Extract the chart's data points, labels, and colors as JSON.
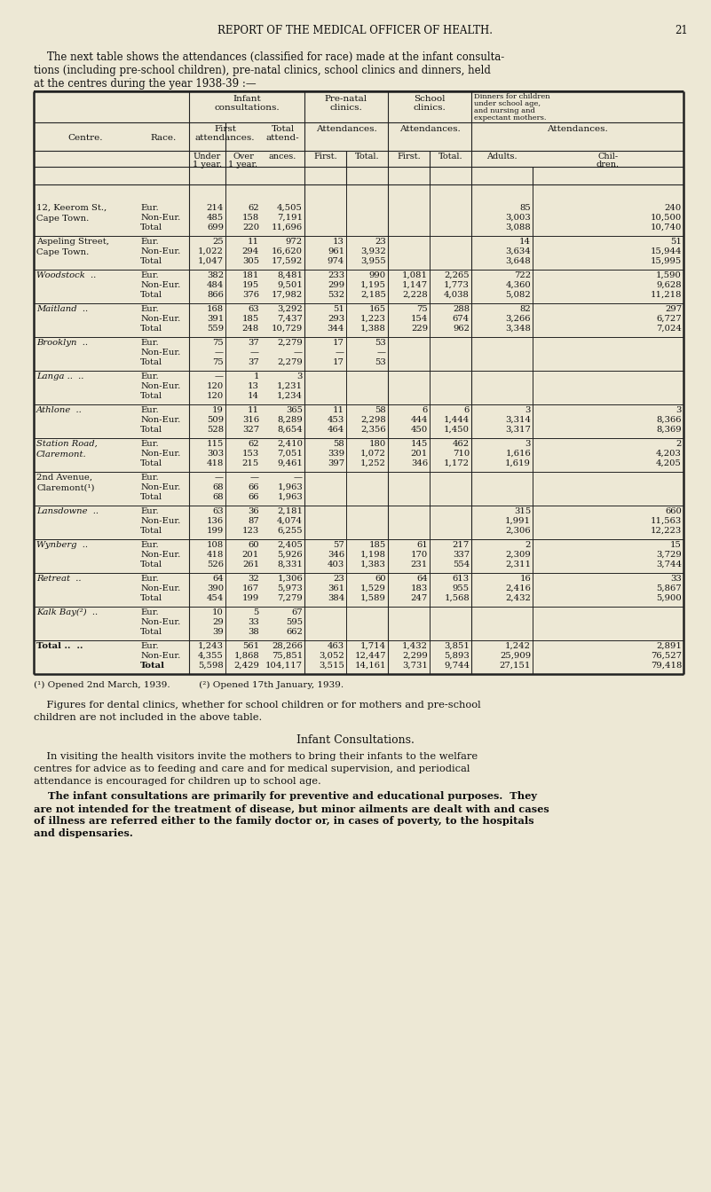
{
  "page_header": "REPORT OF THE MEDICAL OFFICER OF HEALTH.",
  "page_number": "21",
  "intro_lines": [
    "    The next table shows the attendances (classified for race) made at the infant consulta-",
    "tions (including pre-school children), pre-natal clinics, school clinics and dinners, held",
    "at the centres during the year 1938-39 :—"
  ],
  "bg_color": "#EDE8D5",
  "table_rows": [
    {
      "centre": "12, Keerom St.,",
      "centre2": "Cape Town.",
      "italic": false,
      "race": [
        "Eur.",
        "Non-Eur.",
        "Total"
      ],
      "u1": [
        "214",
        "485",
        "699"
      ],
      "o1": [
        "62",
        "158",
        "220"
      ],
      "ta": [
        "4,505",
        "7,191",
        "11,696"
      ],
      "pnf": [
        "",
        "",
        ""
      ],
      "pnt": [
        "",
        "",
        ""
      ],
      "scf": [
        "",
        "",
        ""
      ],
      "sct": [
        "",
        "",
        ""
      ],
      "da": [
        "85",
        "3,003",
        "3,088"
      ],
      "dc": [
        "240",
        "10,500",
        "10,740"
      ]
    },
    {
      "centre": "Aspeling Street,",
      "centre2": "Cape Town.",
      "italic": false,
      "race": [
        "Eur.",
        "Non-Eur.",
        "Total"
      ],
      "u1": [
        "25",
        "1,022",
        "1,047"
      ],
      "o1": [
        "11",
        "294",
        "305"
      ],
      "ta": [
        "972",
        "16,620",
        "17,592"
      ],
      "pnf": [
        "13",
        "961",
        "974"
      ],
      "pnt": [
        "23",
        "3,932",
        "3,955"
      ],
      "scf": [
        "",
        "",
        ""
      ],
      "sct": [
        "",
        "",
        ""
      ],
      "da": [
        "14",
        "3,634",
        "3,648"
      ],
      "dc": [
        "51",
        "15,944",
        "15,995"
      ]
    },
    {
      "centre": "Woodstock",
      "centre2": "..",
      "italic": true,
      "race": [
        "Eur.",
        "Non-Eur.",
        "Total"
      ],
      "u1": [
        "382",
        "484",
        "866"
      ],
      "o1": [
        "181",
        "195",
        "376"
      ],
      "ta": [
        "8,481",
        "9,501",
        "17,982"
      ],
      "pnf": [
        "233",
        "299",
        "532"
      ],
      "pnt": [
        "990",
        "1,195",
        "2,185"
      ],
      "scf": [
        "1,081",
        "1,147",
        "2,228"
      ],
      "sct": [
        "2,265",
        "1,773",
        "4,038"
      ],
      "da": [
        "722",
        "4,360",
        "5,082"
      ],
      "dc": [
        "1,590",
        "9,628",
        "11,218"
      ]
    },
    {
      "centre": "Maitland",
      "centre2": "..",
      "italic": true,
      "race": [
        "Eur.",
        "Non-Eur.",
        "Total"
      ],
      "u1": [
        "168",
        "391",
        "559"
      ],
      "o1": [
        "63",
        "185",
        "248"
      ],
      "ta": [
        "3,292",
        "7,437",
        "10,729"
      ],
      "pnf": [
        "51",
        "293",
        "344"
      ],
      "pnt": [
        "165",
        "1,223",
        "1,388"
      ],
      "scf": [
        "75",
        "154",
        "229"
      ],
      "sct": [
        "288",
        "674",
        "962"
      ],
      "da": [
        "82",
        "3,266",
        "3,348"
      ],
      "dc": [
        "297",
        "6,727",
        "7,024"
      ]
    },
    {
      "centre": "Brooklyn",
      "centre2": "..",
      "italic": true,
      "race": [
        "Eur.",
        "Non-Eur.",
        "Total"
      ],
      "u1": [
        "75",
        "—",
        "75"
      ],
      "o1": [
        "37",
        "—",
        "37"
      ],
      "ta": [
        "2,279",
        "—",
        "2,279"
      ],
      "pnf": [
        "17",
        "—",
        "17"
      ],
      "pnt": [
        "53",
        "—",
        "53"
      ],
      "scf": [
        "",
        "",
        ""
      ],
      "sct": [
        "",
        "",
        ""
      ],
      "da": [
        "",
        "",
        ""
      ],
      "dc": [
        "",
        "",
        ""
      ]
    },
    {
      "centre": "Langa ..",
      "centre2": "..",
      "italic": true,
      "race": [
        "Eur.",
        "Non-Eur.",
        "Total"
      ],
      "u1": [
        "—",
        "120",
        "120"
      ],
      "o1": [
        "1",
        "13",
        "14"
      ],
      "ta": [
        "3",
        "1,231",
        "1,234"
      ],
      "pnf": [
        "",
        "",
        ""
      ],
      "pnt": [
        "",
        "",
        ""
      ],
      "scf": [
        "",
        "",
        ""
      ],
      "sct": [
        "",
        "",
        ""
      ],
      "da": [
        "",
        "",
        ""
      ],
      "dc": [
        "",
        "",
        ""
      ]
    },
    {
      "centre": "Athlone",
      "centre2": "..",
      "italic": true,
      "race": [
        "Eur.",
        "Non-Eur.",
        "Total"
      ],
      "u1": [
        "19",
        "509",
        "528"
      ],
      "o1": [
        "11",
        "316",
        "327"
      ],
      "ta": [
        "365",
        "8,289",
        "8,654"
      ],
      "pnf": [
        "11",
        "453",
        "464"
      ],
      "pnt": [
        "58",
        "2,298",
        "2,356"
      ],
      "scf": [
        "6",
        "444",
        "450"
      ],
      "sct": [
        "6",
        "1,444",
        "1,450"
      ],
      "da": [
        "3",
        "3,314",
        "3,317"
      ],
      "dc": [
        "3",
        "8,366",
        "8,369"
      ]
    },
    {
      "centre": "Station Road,",
      "centre2": "Claremont.",
      "italic": true,
      "race": [
        "Eur.",
        "Non-Eur.",
        "Total"
      ],
      "u1": [
        "115",
        "303",
        "418"
      ],
      "o1": [
        "62",
        "153",
        "215"
      ],
      "ta": [
        "2,410",
        "7,051",
        "9,461"
      ],
      "pnf": [
        "58",
        "339",
        "397"
      ],
      "pnt": [
        "180",
        "1,072",
        "1,252"
      ],
      "scf": [
        "145",
        "201",
        "346"
      ],
      "sct": [
        "462",
        "710",
        "1,172"
      ],
      "da": [
        "3",
        "1,616",
        "1,619"
      ],
      "dc": [
        "2",
        "4,203",
        "4,205"
      ]
    },
    {
      "centre": "2nd Avenue,",
      "centre2": "Claremont(¹)",
      "italic": false,
      "race": [
        "Eur.",
        "Non-Eur.",
        "Total"
      ],
      "u1": [
        "—",
        "68",
        "68"
      ],
      "o1": [
        "—",
        "66",
        "66"
      ],
      "ta": [
        "—",
        "1,963",
        "1,963"
      ],
      "pnf": [
        "",
        "",
        ""
      ],
      "pnt": [
        "",
        "",
        ""
      ],
      "scf": [
        "",
        "",
        ""
      ],
      "sct": [
        "",
        "",
        ""
      ],
      "da": [
        "",
        "",
        ""
      ],
      "dc": [
        "",
        "",
        ""
      ]
    },
    {
      "centre": "Lansdowne",
      "centre2": "..",
      "italic": true,
      "race": [
        "Eur.",
        "Non-Eur.",
        "Total"
      ],
      "u1": [
        "63",
        "136",
        "199"
      ],
      "o1": [
        "36",
        "87",
        "123"
      ],
      "ta": [
        "2,181",
        "4,074",
        "6,255"
      ],
      "pnf": [
        "",
        "",
        ""
      ],
      "pnt": [
        "",
        "",
        ""
      ],
      "scf": [
        "",
        "",
        ""
      ],
      "sct": [
        "",
        "",
        ""
      ],
      "da": [
        "315",
        "1,991",
        "2,306"
      ],
      "dc": [
        "660",
        "11,563",
        "12,223"
      ]
    },
    {
      "centre": "Wynberg",
      "centre2": "..",
      "italic": true,
      "race": [
        "Eur.",
        "Non-Eur.",
        "Total"
      ],
      "u1": [
        "108",
        "418",
        "526"
      ],
      "o1": [
        "60",
        "201",
        "261"
      ],
      "ta": [
        "2,405",
        "5,926",
        "8,331"
      ],
      "pnf": [
        "57",
        "346",
        "403"
      ],
      "pnt": [
        "185",
        "1,198",
        "1,383"
      ],
      "scf": [
        "61",
        "170",
        "231"
      ],
      "sct": [
        "217",
        "337",
        "554"
      ],
      "da": [
        "2",
        "2,309",
        "2,311"
      ],
      "dc": [
        "15",
        "3,729",
        "3,744"
      ]
    },
    {
      "centre": "Retreat",
      "centre2": "..",
      "italic": true,
      "race": [
        "Eur.",
        "Non-Eur.",
        "Total"
      ],
      "u1": [
        "64",
        "390",
        "454"
      ],
      "o1": [
        "32",
        "167",
        "199"
      ],
      "ta": [
        "1,306",
        "5,973",
        "7,279"
      ],
      "pnf": [
        "23",
        "361",
        "384"
      ],
      "pnt": [
        "60",
        "1,529",
        "1,589"
      ],
      "scf": [
        "64",
        "183",
        "247"
      ],
      "sct": [
        "613",
        "955",
        "1,568"
      ],
      "da": [
        "16",
        "2,416",
        "2,432"
      ],
      "dc": [
        "33",
        "5,867",
        "5,900"
      ]
    },
    {
      "centre": "Kalk Bay(²)",
      "centre2": "..",
      "italic": true,
      "race": [
        "Eur.",
        "Non-Eur.",
        "Total"
      ],
      "u1": [
        "10",
        "29",
        "39"
      ],
      "o1": [
        "5",
        "33",
        "38"
      ],
      "ta": [
        "67",
        "595",
        "662"
      ],
      "pnf": [
        "",
        "",
        ""
      ],
      "pnt": [
        "",
        "",
        ""
      ],
      "scf": [
        "",
        "",
        ""
      ],
      "sct": [
        "",
        "",
        ""
      ],
      "da": [
        "",
        "",
        ""
      ],
      "dc": [
        "",
        "",
        ""
      ]
    },
    {
      "centre": "Total ..",
      "centre2": "..",
      "italic": false,
      "bold": true,
      "race": [
        "Eur.",
        "Non-Eur.",
        "Total"
      ],
      "u1": [
        "1,243",
        "4,355",
        "5,598"
      ],
      "o1": [
        "561",
        "1,868",
        "2,429"
      ],
      "ta": [
        "28,266",
        "75,851",
        "104,117"
      ],
      "pnf": [
        "463",
        "3,052",
        "3,515"
      ],
      "pnt": [
        "1,714",
        "12,447",
        "14,161"
      ],
      "scf": [
        "1,432",
        "2,299",
        "3,731"
      ],
      "sct": [
        "3,851",
        "5,893",
        "9,744"
      ],
      "da": [
        "1,242",
        "25,909",
        "27,151"
      ],
      "dc": [
        "2,891",
        "76,527",
        "79,418"
      ]
    }
  ],
  "footnote": "(¹) Opened 2nd March, 1939.          (²) Opened 17th January, 1939.",
  "para1_lines": [
    "    Figures for dental clinics, whether for school children or for mothers and pre-school",
    "children are not included in the above table."
  ],
  "section_title": "Infant Consultations.",
  "para2_lines": [
    "    In visiting the health visitors invite the mothers to bring their infants to the welfare",
    "centres for advice as to feeding and care and for medical supervision, and periodical",
    "attendance is encouraged for children up to school age."
  ],
  "para3_lines": [
    "    The infant consultations are primarily for preventive and educational purposes.  They",
    "are not intended for the treatment of disease, but minor ailments are dealt with and cases",
    "of illness are referred either to the family doctor or, in cases of poverty, to the hospitals",
    "and dispensaries."
  ]
}
